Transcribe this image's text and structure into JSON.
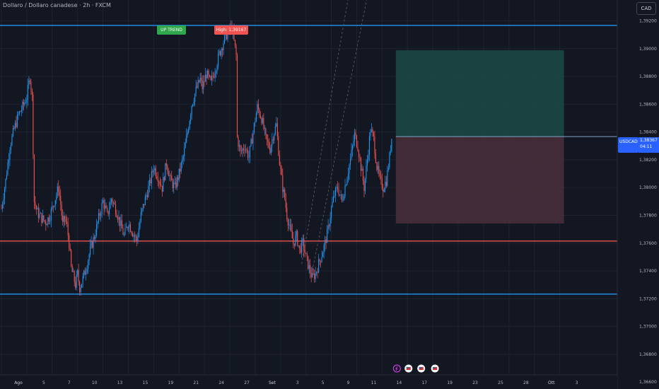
{
  "header": {
    "title": "Dollaro / Dollaro canadese · 2h · FXCM",
    "currency_button": "CAD"
  },
  "annotations": {
    "up_trend_label": "UP TREND",
    "high_label": "High: 1,39167"
  },
  "price_tag": {
    "symbol": "USDCAD",
    "price": "1,38367",
    "countdown": "04:11"
  },
  "colors": {
    "background": "#131722",
    "up": "#2196f3",
    "down": "#f05350",
    "horizontal_blue": "#2196f3",
    "horizontal_red": "#f05350",
    "target_zone": "#1b4a45",
    "stop_zone": "#4a2f3a",
    "up_trend_tag": "#2ea84a",
    "high_tag": "#f05350",
    "price_tag": "#2962ff"
  },
  "chart_data": {
    "type": "candlestick",
    "y_axis": {
      "range": [
        1.3655,
        1.3935
      ],
      "ticks": [
        "1,39200",
        "1,39000",
        "1,38800",
        "1,38600",
        "1,38400",
        "1,38200",
        "1,38000",
        "1,37800",
        "1,37600",
        "1,37400",
        "1,37200",
        "1,37000",
        "1,36800",
        "1,36600"
      ],
      "tick_values": [
        1.392,
        1.39,
        1.388,
        1.386,
        1.384,
        1.382,
        1.38,
        1.378,
        1.376,
        1.374,
        1.372,
        1.37,
        1.368,
        1.366
      ]
    },
    "x_axis": {
      "ticks": [
        "Ago",
        "5",
        "7",
        "10",
        "13",
        "15",
        "19",
        "21",
        "24",
        "27",
        "Set",
        "3",
        "5",
        "9",
        "11",
        "14",
        "17",
        "19",
        "23",
        "25",
        "28",
        "Ott",
        "3"
      ],
      "tick_index": [
        0,
        24,
        48,
        72,
        96,
        120,
        144,
        168,
        192,
        216,
        240,
        264,
        288,
        312,
        336,
        360,
        384,
        408,
        432,
        456,
        480,
        504,
        528
      ],
      "bold": [
        "Ago",
        "Set",
        "Ott"
      ]
    },
    "price_path": [
      [
        0,
        1.3785
      ],
      [
        4,
        1.3805
      ],
      [
        8,
        1.383
      ],
      [
        12,
        1.3842
      ],
      [
        16,
        1.3852
      ],
      [
        20,
        1.3858
      ],
      [
        24,
        1.3865
      ],
      [
        27,
        1.388
      ],
      [
        29,
        1.3865
      ],
      [
        31,
        1.379
      ],
      [
        34,
        1.3782
      ],
      [
        38,
        1.3778
      ],
      [
        42,
        1.3775
      ],
      [
        46,
        1.378
      ],
      [
        50,
        1.379
      ],
      [
        54,
        1.38
      ],
      [
        56,
        1.3788
      ],
      [
        58,
        1.3773
      ],
      [
        60,
        1.3778
      ],
      [
        62,
        1.3772
      ],
      [
        64,
        1.376
      ],
      [
        66,
        1.3742
      ],
      [
        68,
        1.3736
      ],
      [
        70,
        1.373
      ],
      [
        72,
        1.3738
      ],
      [
        74,
        1.3728
      ],
      [
        76,
        1.3732
      ],
      [
        80,
        1.3742
      ],
      [
        84,
        1.3755
      ],
      [
        88,
        1.3765
      ],
      [
        92,
        1.3778
      ],
      [
        96,
        1.379
      ],
      [
        100,
        1.378
      ],
      [
        104,
        1.3792
      ],
      [
        108,
        1.3785
      ],
      [
        112,
        1.3775
      ],
      [
        116,
        1.3765
      ],
      [
        120,
        1.3775
      ],
      [
        124,
        1.3768
      ],
      [
        128,
        1.3762
      ],
      [
        132,
        1.378
      ],
      [
        136,
        1.3792
      ],
      [
        140,
        1.3802
      ],
      [
        144,
        1.3815
      ],
      [
        148,
        1.3808
      ],
      [
        152,
        1.38
      ],
      [
        156,
        1.3818
      ],
      [
        160,
        1.3805
      ],
      [
        164,
        1.38
      ],
      [
        168,
        1.381
      ],
      [
        172,
        1.3822
      ],
      [
        176,
        1.384
      ],
      [
        180,
        1.386
      ],
      [
        184,
        1.387
      ],
      [
        188,
        1.3878
      ],
      [
        190,
        1.3872
      ],
      [
        194,
        1.3882
      ],
      [
        198,
        1.3875
      ],
      [
        202,
        1.3885
      ],
      [
        206,
        1.3896
      ],
      [
        210,
        1.3905
      ],
      [
        214,
        1.3912
      ],
      [
        218,
        1.3915
      ],
      [
        220,
        1.3905
      ],
      [
        222,
        1.3895
      ],
      [
        223,
        1.3836
      ],
      [
        226,
        1.3825
      ],
      [
        230,
        1.383
      ],
      [
        234,
        1.3822
      ],
      [
        238,
        1.384
      ],
      [
        242,
        1.3858
      ],
      [
        246,
        1.385
      ],
      [
        250,
        1.3835
      ],
      [
        254,
        1.3828
      ],
      [
        257,
        1.3838
      ],
      [
        260,
        1.3845
      ],
      [
        263,
        1.3818
      ],
      [
        266,
        1.38
      ],
      [
        268,
        1.3792
      ],
      [
        270,
        1.378
      ],
      [
        273,
        1.377
      ],
      [
        276,
        1.376
      ],
      [
        279,
        1.3765
      ],
      [
        282,
        1.3755
      ],
      [
        285,
        1.376
      ],
      [
        288,
        1.375
      ],
      [
        291,
        1.3742
      ],
      [
        294,
        1.3735
      ],
      [
        297,
        1.3738
      ],
      [
        300,
        1.3745
      ],
      [
        303,
        1.3752
      ],
      [
        306,
        1.376
      ],
      [
        309,
        1.377
      ],
      [
        312,
        1.3785
      ],
      [
        315,
        1.3795
      ],
      [
        318,
        1.38
      ],
      [
        322,
        1.379
      ],
      [
        326,
        1.3805
      ],
      [
        330,
        1.382
      ],
      [
        334,
        1.3838
      ],
      [
        337,
        1.383
      ],
      [
        340,
        1.3815
      ],
      [
        343,
        1.38
      ],
      [
        346,
        1.382
      ],
      [
        349,
        1.3842
      ],
      [
        352,
        1.3835
      ],
      [
        355,
        1.3815
      ],
      [
        358,
        1.3805
      ],
      [
        361,
        1.38
      ],
      [
        364,
        1.3805
      ],
      [
        367,
        1.3822
      ],
      [
        369,
        1.3836
      ]
    ],
    "last_index": 369,
    "levels": [
      {
        "price": 1.39167,
        "color": "blue"
      },
      {
        "price": 1.37615,
        "color": "red"
      },
      {
        "price": 1.37233,
        "color": "blue"
      }
    ],
    "position_tool": {
      "start_index": 373,
      "end_index": 532,
      "entry": 1.38367,
      "target": 1.38988,
      "stop": 1.37741
    },
    "trend_lines": [
      {
        "from": [
          284,
          1.3745
        ],
        "to": [
          330,
          1.3945
        ]
      },
      {
        "from": [
          294,
          1.374
        ],
        "to": [
          348,
          1.3945
        ]
      }
    ],
    "event_markers_index": [
      374,
      385,
      397,
      410
    ]
  }
}
